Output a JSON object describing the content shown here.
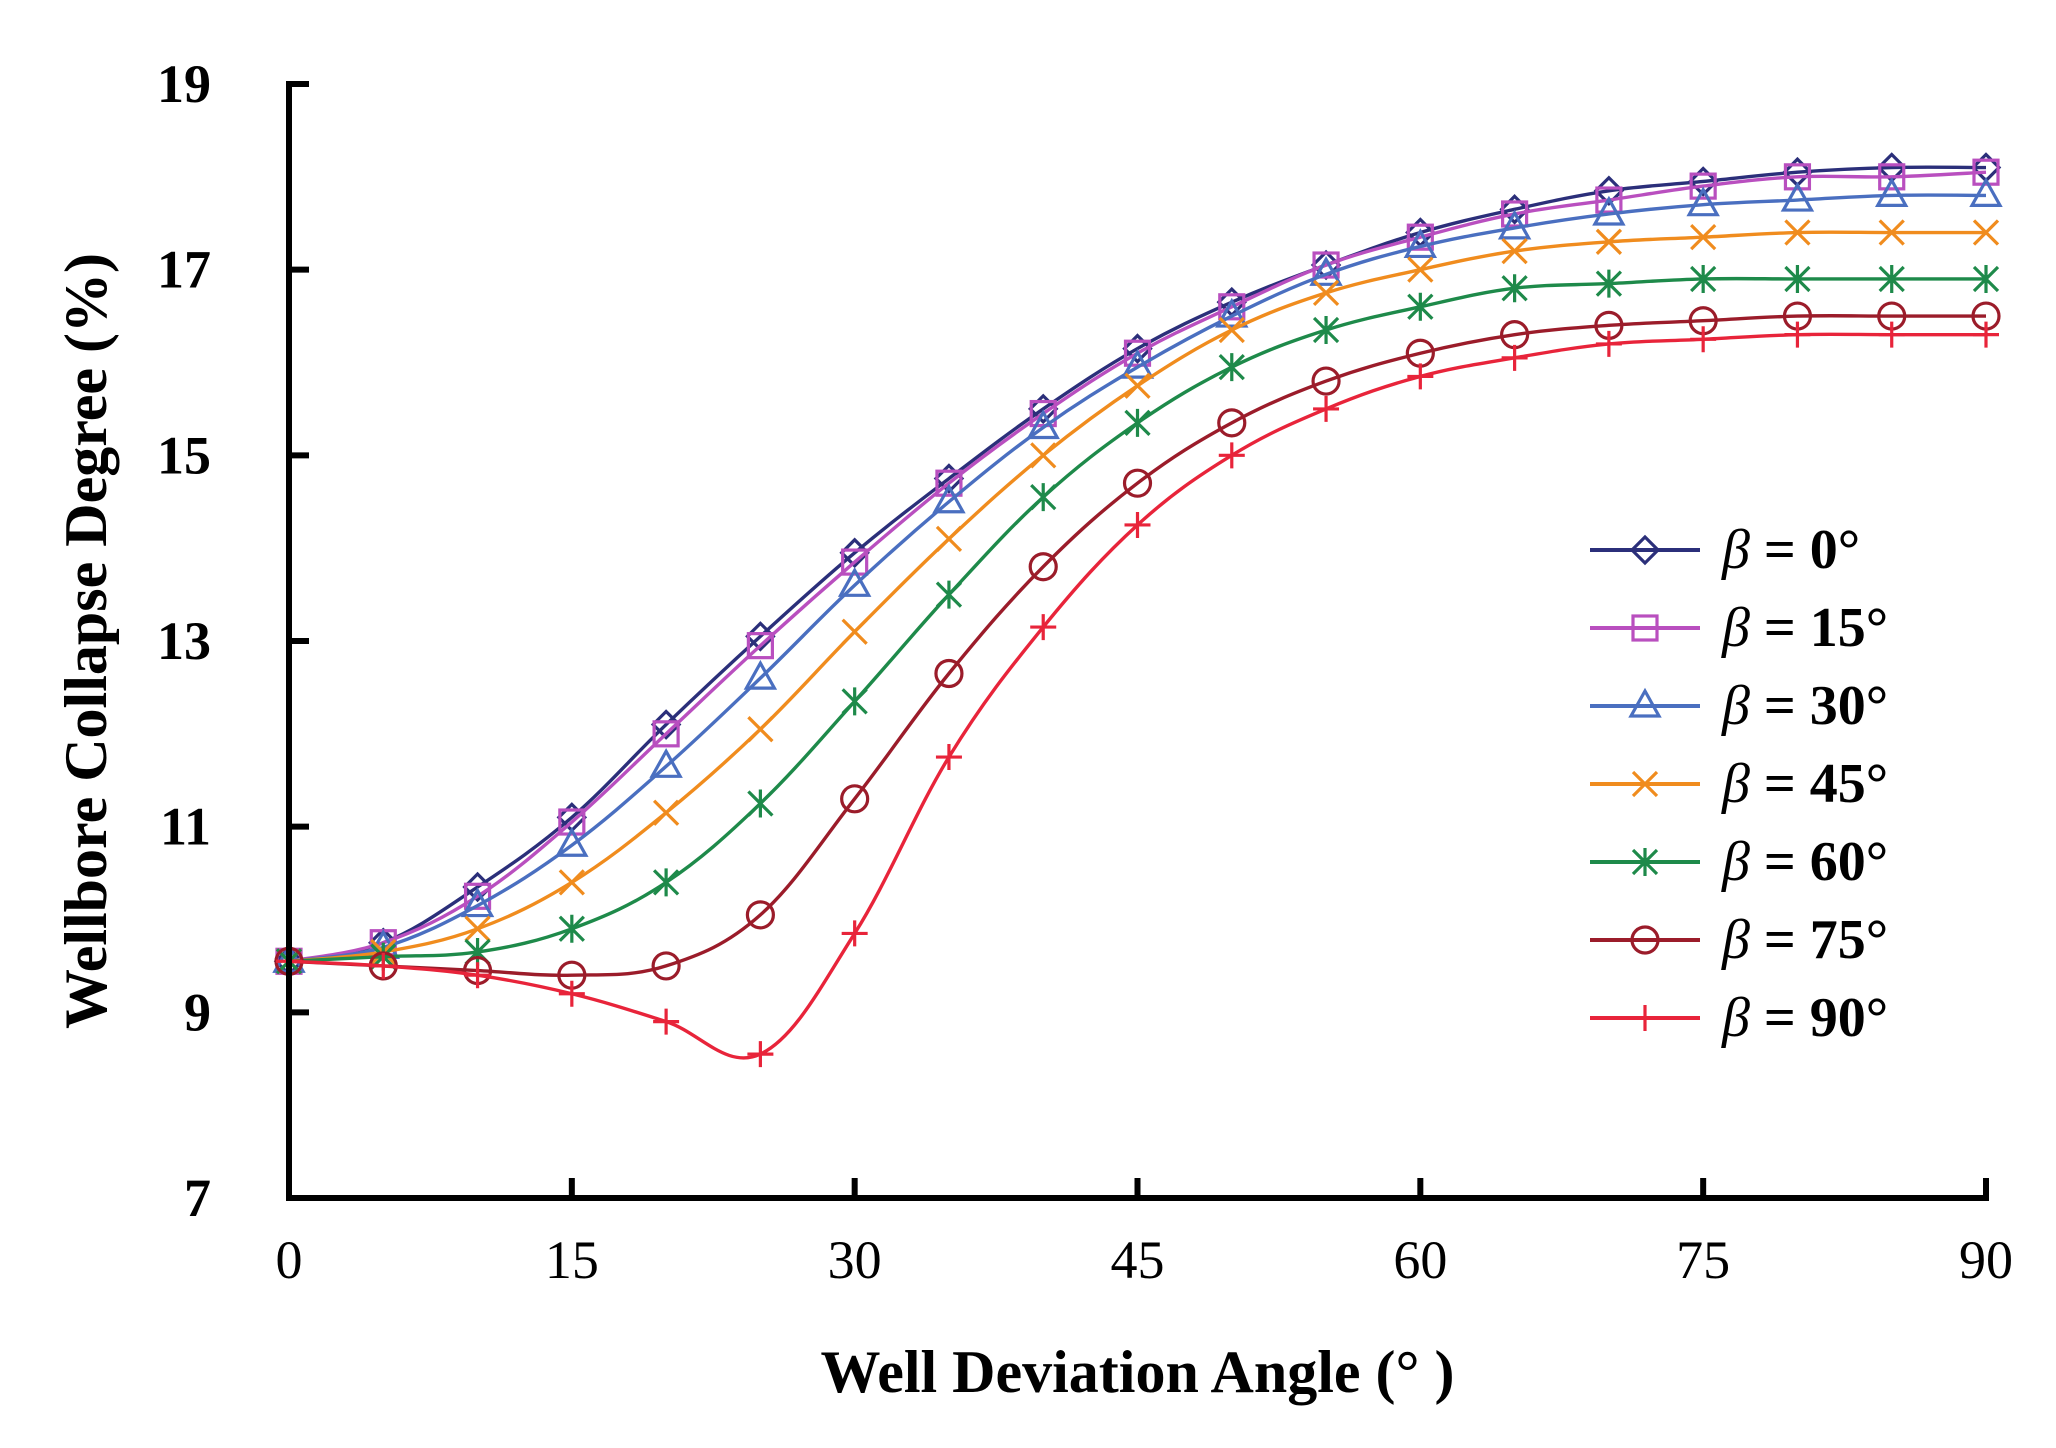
{
  "chart_data": {
    "type": "line",
    "title": "",
    "xlabel": "Well Deviation Angle (°  )",
    "ylabel": "Wellbore Collapse Degree (%)",
    "xlim": [
      0,
      90
    ],
    "ylim": [
      7,
      19
    ],
    "xticks": [
      0,
      15,
      30,
      45,
      60,
      75,
      90
    ],
    "xtick_labels": [
      "0",
      "15",
      "30",
      "45",
      "60",
      "75",
      "90"
    ],
    "yticks": [
      7,
      9,
      11,
      13,
      15,
      17,
      19
    ],
    "ytick_labels": [
      "7",
      "9",
      "11",
      "13",
      "15",
      "17",
      "19"
    ],
    "grid": false,
    "legend_position": "right",
    "x": [
      0,
      5,
      10,
      15,
      20,
      25,
      30,
      35,
      40,
      45,
      50,
      55,
      60,
      65,
      70,
      75,
      80,
      85,
      90
    ],
    "series": [
      {
        "name": "β = 0°",
        "legend_symbol": "β",
        "legend_value": "= 0°",
        "marker": "diamond",
        "color": "#2b2f7a",
        "values": [
          9.55,
          9.75,
          10.35,
          11.1,
          12.1,
          13.05,
          13.95,
          14.75,
          15.5,
          16.15,
          16.65,
          17.05,
          17.4,
          17.65,
          17.85,
          17.95,
          18.05,
          18.1,
          18.1
        ]
      },
      {
        "name": "β = 15°",
        "legend_symbol": "β",
        "legend_value": "= 15°",
        "marker": "square",
        "color": "#b94fbf",
        "values": [
          9.55,
          9.75,
          10.25,
          11.05,
          12.0,
          12.95,
          13.85,
          14.7,
          15.45,
          16.1,
          16.6,
          17.05,
          17.35,
          17.6,
          17.75,
          17.9,
          18.0,
          18.0,
          18.05
        ]
      },
      {
        "name": "β = 30°",
        "legend_symbol": "β",
        "legend_value": "= 30°",
        "marker": "triangle",
        "color": "#4a6fc0",
        "values": [
          9.55,
          9.7,
          10.15,
          10.8,
          11.65,
          12.6,
          13.6,
          14.5,
          15.3,
          15.95,
          16.5,
          16.95,
          17.25,
          17.45,
          17.6,
          17.7,
          17.75,
          17.8,
          17.8
        ]
      },
      {
        "name": "β = 45°",
        "legend_symbol": "β",
        "legend_value": "= 45°",
        "marker": "x",
        "color": "#f08c1e",
        "values": [
          9.55,
          9.65,
          9.9,
          10.4,
          11.15,
          12.05,
          13.1,
          14.1,
          15.0,
          15.75,
          16.35,
          16.75,
          17.0,
          17.2,
          17.3,
          17.35,
          17.4,
          17.4,
          17.4
        ]
      },
      {
        "name": "β = 60°",
        "legend_symbol": "β",
        "legend_value": "= 60°",
        "marker": "asterisk",
        "color": "#1e8a4a",
        "values": [
          9.55,
          9.6,
          9.65,
          9.9,
          10.4,
          11.25,
          12.35,
          13.5,
          14.55,
          15.35,
          15.95,
          16.35,
          16.6,
          16.8,
          16.85,
          16.9,
          16.9,
          16.9,
          16.9
        ]
      },
      {
        "name": "β = 75°",
        "legend_symbol": "β",
        "legend_value": "= 75°",
        "marker": "circle",
        "color": "#9b1c2a",
        "values": [
          9.55,
          9.5,
          9.45,
          9.4,
          9.5,
          10.05,
          11.3,
          12.65,
          13.8,
          14.7,
          15.35,
          15.8,
          16.1,
          16.3,
          16.4,
          16.45,
          16.5,
          16.5,
          16.5
        ]
      },
      {
        "name": "β = 90°",
        "legend_symbol": "β",
        "legend_value": "= 90°",
        "marker": "plus",
        "color": "#e8243a",
        "values": [
          9.55,
          9.5,
          9.4,
          9.2,
          8.9,
          8.55,
          9.85,
          11.75,
          13.15,
          14.25,
          15.0,
          15.5,
          15.85,
          16.05,
          16.2,
          16.25,
          16.3,
          16.3,
          16.3
        ]
      }
    ]
  }
}
